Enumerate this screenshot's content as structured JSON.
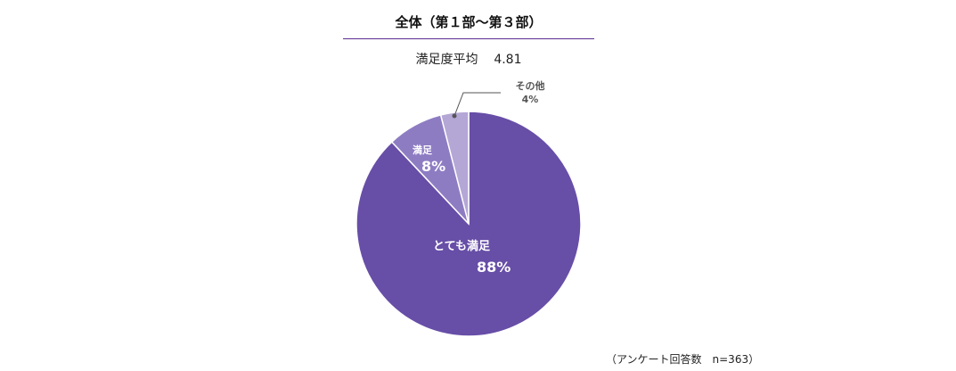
{
  "chart_data": {
    "type": "pie",
    "title": "全体（第１部～第３部）",
    "subtitle_label": "満足度平均",
    "subtitle_value": "4.81",
    "note": "（アンケート回答数　n=363）",
    "slices": [
      {
        "label": "とても満足",
        "value": 88,
        "value_label": "88%",
        "color": "#674ea7"
      },
      {
        "label": "満足",
        "value": 8,
        "value_label": "8%",
        "color": "#8e7cc3"
      },
      {
        "label": "その他",
        "value": 4,
        "value_label": "4%",
        "color": "#b4a7d6"
      }
    ]
  }
}
